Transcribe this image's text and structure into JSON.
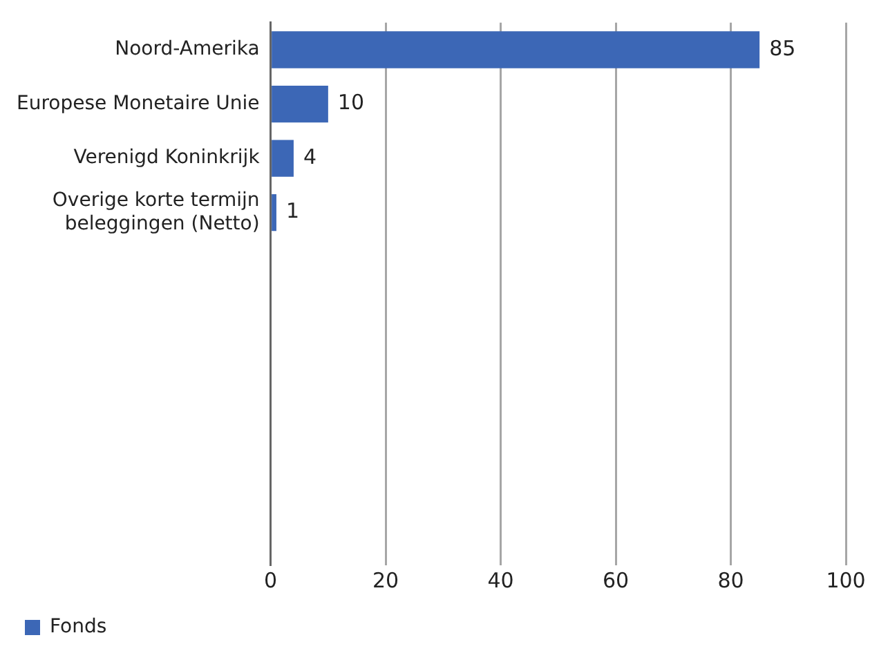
{
  "chart_data": {
    "type": "bar",
    "orientation": "horizontal",
    "categories": [
      "Noord-Amerika",
      "Europese Monetaire Unie",
      "Verenigd Koninkrijk",
      "Overige korte termijn beleggingen (Netto)",
      null,
      null,
      null,
      null,
      null,
      null
    ],
    "series": [
      {
        "name": "Fonds",
        "color": "#3c67b6",
        "values": [
          85,
          10,
          4,
          1,
          null,
          null,
          null,
          null,
          null,
          null
        ]
      }
    ],
    "xlim": [
      0,
      100
    ],
    "xticks": [
      0,
      20,
      40,
      60,
      80,
      100
    ],
    "grid": "x",
    "legend": "bottom left",
    "data_labels": true
  }
}
